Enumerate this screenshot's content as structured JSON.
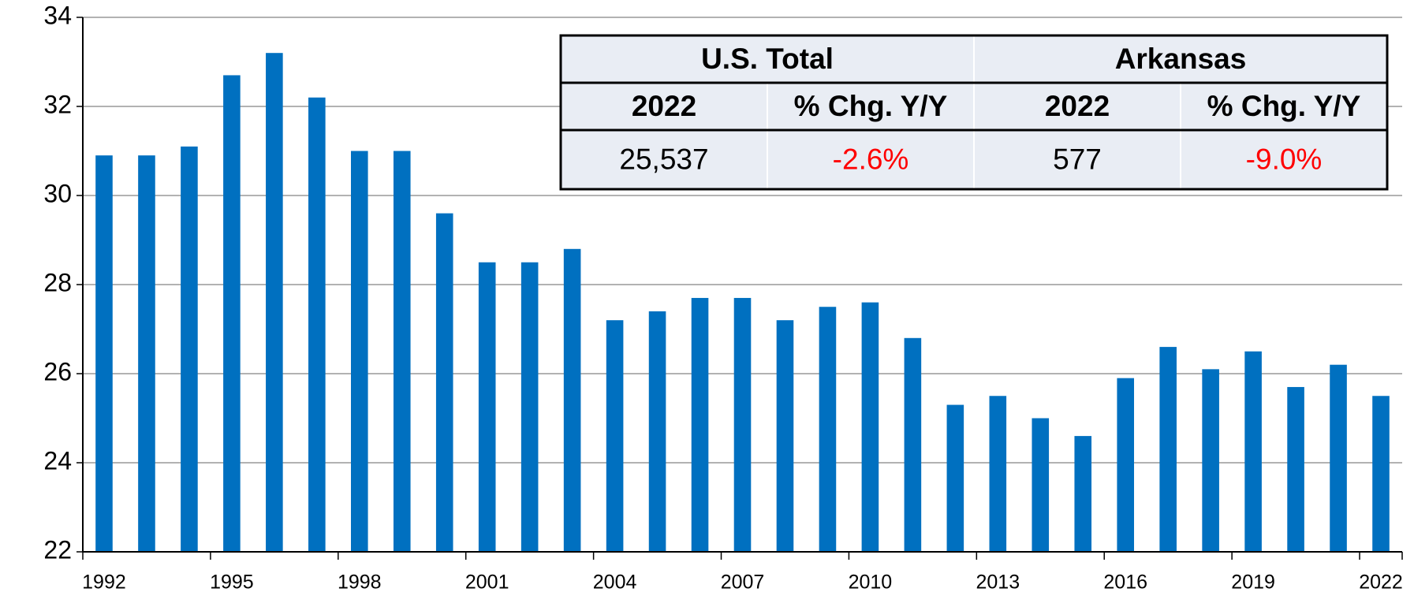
{
  "chart_data": {
    "type": "bar",
    "categories": [
      "1992",
      null,
      null,
      "1995",
      null,
      null,
      "1998",
      null,
      null,
      "2001",
      null,
      null,
      "2004",
      null,
      null,
      "2007",
      null,
      null,
      "2010",
      null,
      null,
      "2013",
      null,
      null,
      "2016",
      null,
      null,
      "2019",
      null,
      null,
      "2022"
    ],
    "values": [
      30.9,
      30.9,
      31.1,
      32.7,
      33.2,
      32.2,
      31.0,
      31.0,
      29.6,
      28.5,
      28.5,
      28.8,
      27.2,
      27.4,
      27.7,
      27.7,
      27.2,
      27.5,
      27.6,
      26.8,
      25.3,
      25.5,
      25.0,
      24.6,
      25.9,
      26.6,
      26.1,
      26.5,
      25.7,
      26.2,
      25.5
    ],
    "color": "#0070c0",
    "ylim": [
      22,
      34
    ],
    "yticks": [
      22,
      24,
      26,
      28,
      30,
      32,
      34
    ],
    "grid": true,
    "table": {
      "groups": [
        "U.S. Total",
        "Arkansas"
      ],
      "columns": [
        "2022",
        "% Chg. Y/Y",
        "2022",
        "% Chg. Y/Y"
      ],
      "row": [
        "25,537",
        "-2.6%",
        "577",
        "-9.0%"
      ]
    }
  }
}
